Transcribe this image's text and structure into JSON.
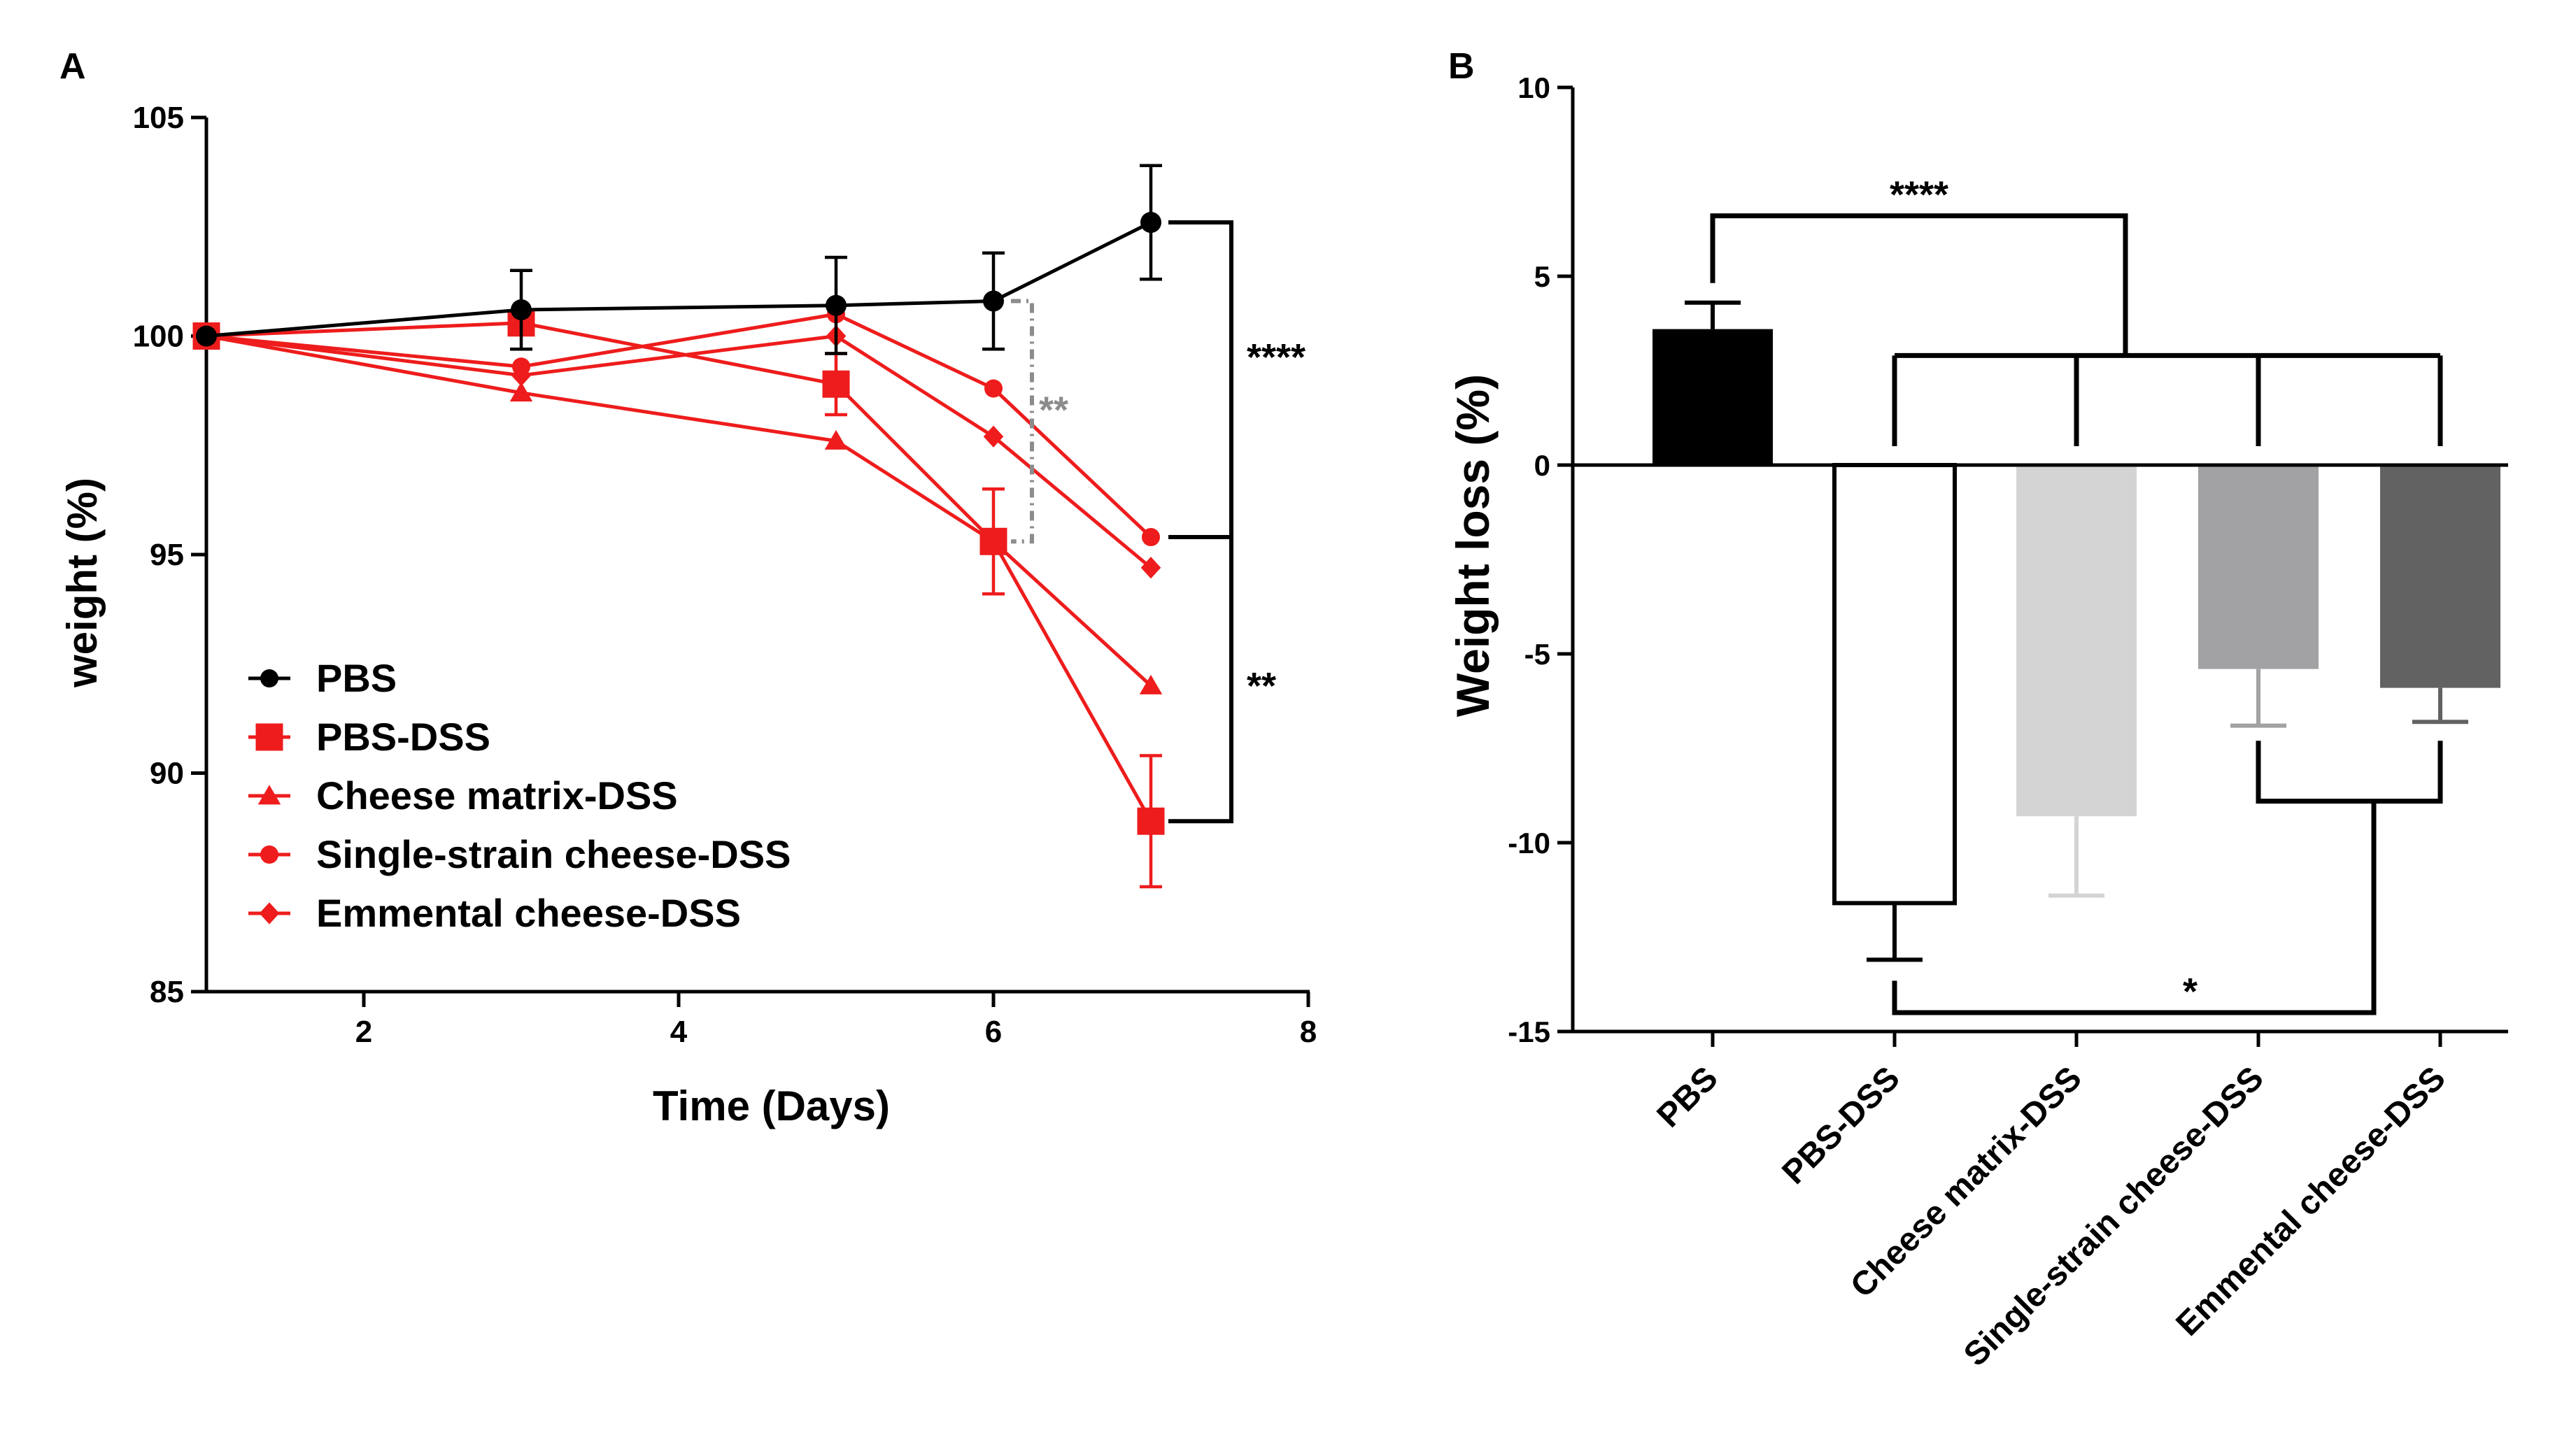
{
  "panels": {
    "a_label": "A",
    "b_label": "B"
  },
  "colors": {
    "pbs": "#000000",
    "dss": "#ee1c1c",
    "sig_gray": "#8c8c8c",
    "bar_pbs": "#000000",
    "bar_pbs_dss": "#ffffff",
    "bar_cheese_matrix": "#d4d4d4",
    "bar_single_strain": "#a2a2a4",
    "bar_emmental": "#626262"
  },
  "chart_data": [
    {
      "type": "line",
      "panel": "A",
      "xlabel": "Time (Days)",
      "ylabel": "weight (%)",
      "xlim": [
        1,
        8
      ],
      "ylim": [
        85,
        105
      ],
      "xticks": [
        2,
        4,
        6,
        8
      ],
      "yticks": [
        85,
        90,
        95,
        100,
        105
      ],
      "series": [
        {
          "name": "PBS",
          "marker": "circle",
          "color": "#000000",
          "x": [
            1,
            3,
            5,
            6,
            7
          ],
          "y": [
            100,
            100.6,
            100.7,
            100.8,
            102.6
          ],
          "err": [
            0,
            0.9,
            1.1,
            1.1,
            1.3
          ]
        },
        {
          "name": "PBS-DSS",
          "marker": "square",
          "color": "#ee1c1c",
          "x": [
            1,
            3,
            5,
            6,
            7
          ],
          "y": [
            100,
            100.3,
            98.9,
            95.3,
            88.9
          ],
          "err": [
            0,
            0,
            0.7,
            1.2,
            1.5
          ]
        },
        {
          "name": "Cheese matrix-DSS",
          "marker": "triangle",
          "color": "#ee1c1c",
          "x": [
            1,
            3,
            5,
            6,
            7
          ],
          "y": [
            100,
            98.7,
            97.6,
            95.3,
            92.0
          ],
          "err": [
            0,
            0,
            0,
            0,
            0
          ]
        },
        {
          "name": "Single-strain cheese-DSS",
          "marker": "circle",
          "color": "#ee1c1c",
          "x": [
            1,
            3,
            5,
            6,
            7
          ],
          "y": [
            100,
            99.3,
            100.5,
            98.8,
            95.4
          ],
          "err": [
            0,
            0,
            0,
            0,
            0
          ]
        },
        {
          "name": "Emmental cheese-DSS",
          "marker": "diamond",
          "color": "#ee1c1c",
          "x": [
            1,
            3,
            5,
            6,
            7
          ],
          "y": [
            100,
            99.1,
            100.0,
            97.7,
            94.7
          ],
          "err": [
            0,
            0,
            0,
            0,
            0
          ]
        }
      ],
      "annotations": [
        {
          "text": "****",
          "between": [
            "PBS",
            "Single-strain cheese-DSS"
          ],
          "at_x": 7,
          "y_top": 102.6,
          "y_bottom": 95.4
        },
        {
          "text": "**",
          "between": [
            "Single-strain cheese-DSS",
            "PBS-DSS"
          ],
          "at_x": 7,
          "y_top": 95.4,
          "y_bottom": 88.9
        },
        {
          "text": "**",
          "between": [
            "PBS",
            "PBS-DSS"
          ],
          "at_x": 6,
          "y_top": 100.8,
          "y_bottom": 95.3,
          "style": "dotted-gray"
        }
      ],
      "legend": "bottom-left"
    },
    {
      "type": "bar",
      "panel": "B",
      "ylabel": "Weight loss (%)",
      "ylim": [
        -15,
        10
      ],
      "yticks": [
        -15,
        -10,
        -5,
        0,
        5,
        10
      ],
      "categories": [
        "PBS",
        "PBS-DSS",
        "Cheese matrix-DSS",
        "Single-strain cheese-DSS",
        "Emmental cheese-DSS"
      ],
      "values": [
        3.6,
        -11.6,
        -9.3,
        -5.4,
        -5.9
      ],
      "errors": [
        0.7,
        1.5,
        2.1,
        1.5,
        0.9
      ],
      "annotations": [
        {
          "text": "****",
          "between": [
            "PBS",
            "PBS-DSS + Cheese matrix-DSS + Single-strain cheese-DSS + Emmental cheese-DSS"
          ],
          "y": 6.6
        },
        {
          "text": "*",
          "between": [
            "PBS-DSS",
            "Single-strain cheese-DSS + Emmental cheese-DSS"
          ],
          "y": -14.5
        }
      ]
    }
  ]
}
